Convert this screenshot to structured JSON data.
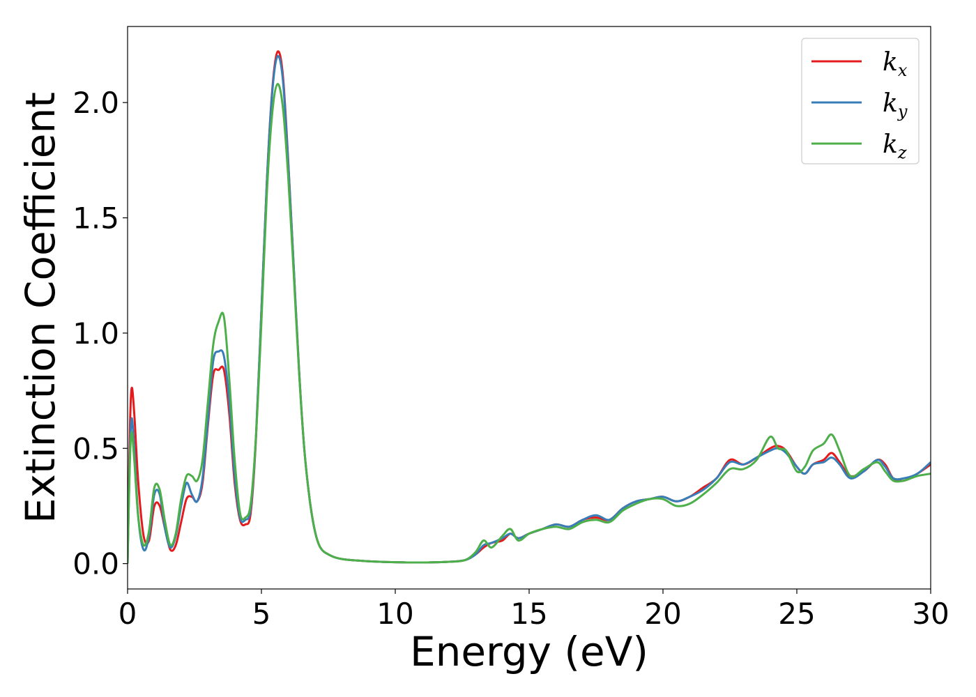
{
  "chart_data": {
    "type": "line",
    "title": "",
    "xlabel": "Energy (eV)",
    "ylabel": "Extinction Coefficient",
    "xlim": [
      0,
      30
    ],
    "ylim": [
      -0.11,
      2.33
    ],
    "xticks": [
      0,
      5,
      10,
      15,
      20,
      25,
      30
    ],
    "xtick_labels": [
      "0",
      "5",
      "10",
      "15",
      "20",
      "25",
      "30"
    ],
    "yticks": [
      0.0,
      0.5,
      1.0,
      1.5,
      2.0
    ],
    "ytick_labels": [
      "0.0",
      "0.5",
      "1.0",
      "1.5",
      "2.0"
    ],
    "grid": false,
    "legend_position": "top-right",
    "series": [
      {
        "name": "k_x",
        "label_base": "k",
        "label_sub": "x",
        "color": "#e41a1c",
        "x": [
          0,
          0.08,
          0.15,
          0.25,
          0.4,
          0.6,
          0.8,
          1.0,
          1.2,
          1.4,
          1.6,
          1.8,
          2.0,
          2.2,
          2.4,
          2.6,
          2.8,
          3.0,
          3.2,
          3.4,
          3.6,
          3.8,
          4.0,
          4.2,
          4.4,
          4.6,
          4.8,
          5.0,
          5.2,
          5.4,
          5.6,
          5.8,
          6.0,
          6.2,
          6.4,
          6.6,
          6.8,
          7.0,
          7.2,
          7.5,
          8.0,
          9.0,
          10.0,
          11.0,
          12.0,
          12.6,
          13.0,
          13.3,
          13.6,
          14.0,
          14.3,
          14.6,
          15.0,
          15.5,
          16.0,
          16.5,
          17.0,
          17.5,
          18.0,
          18.5,
          19.0,
          19.5,
          20.0,
          20.5,
          21.0,
          21.5,
          22.0,
          22.5,
          23.0,
          23.5,
          24.0,
          24.3,
          24.6,
          25.0,
          25.3,
          25.6,
          26.0,
          26.3,
          26.6,
          27.0,
          27.5,
          28.0,
          28.3,
          28.6,
          29.0,
          29.5,
          30.0
        ],
        "values": [
          0.0,
          0.55,
          0.76,
          0.65,
          0.35,
          0.12,
          0.1,
          0.25,
          0.25,
          0.15,
          0.06,
          0.08,
          0.18,
          0.28,
          0.29,
          0.27,
          0.35,
          0.6,
          0.82,
          0.84,
          0.84,
          0.65,
          0.35,
          0.19,
          0.17,
          0.22,
          0.55,
          1.1,
          1.65,
          2.05,
          2.22,
          2.12,
          1.75,
          1.3,
          0.85,
          0.5,
          0.28,
          0.14,
          0.07,
          0.04,
          0.02,
          0.01,
          0.006,
          0.005,
          0.008,
          0.015,
          0.04,
          0.07,
          0.09,
          0.1,
          0.13,
          0.11,
          0.13,
          0.15,
          0.17,
          0.16,
          0.19,
          0.2,
          0.19,
          0.24,
          0.27,
          0.28,
          0.29,
          0.27,
          0.29,
          0.33,
          0.37,
          0.45,
          0.43,
          0.46,
          0.5,
          0.51,
          0.49,
          0.42,
          0.39,
          0.43,
          0.45,
          0.48,
          0.44,
          0.38,
          0.4,
          0.45,
          0.43,
          0.37,
          0.36,
          0.39,
          0.43
        ]
      },
      {
        "name": "k_y",
        "label_base": "k",
        "label_sub": "y",
        "color": "#377eb8",
        "x": [
          0,
          0.08,
          0.15,
          0.25,
          0.4,
          0.6,
          0.8,
          1.0,
          1.2,
          1.4,
          1.6,
          1.8,
          2.0,
          2.2,
          2.4,
          2.6,
          2.8,
          3.0,
          3.2,
          3.4,
          3.6,
          3.8,
          4.0,
          4.2,
          4.4,
          4.6,
          4.8,
          5.0,
          5.2,
          5.4,
          5.6,
          5.8,
          6.0,
          6.2,
          6.4,
          6.6,
          6.8,
          7.0,
          7.2,
          7.5,
          8.0,
          9.0,
          10.0,
          11.0,
          12.0,
          12.6,
          13.0,
          13.3,
          13.6,
          14.0,
          14.3,
          14.6,
          15.0,
          15.5,
          16.0,
          16.5,
          17.0,
          17.5,
          18.0,
          18.5,
          19.0,
          19.5,
          20.0,
          20.5,
          21.0,
          21.5,
          22.0,
          22.5,
          23.0,
          23.5,
          24.0,
          24.3,
          24.6,
          25.0,
          25.3,
          25.6,
          26.0,
          26.3,
          26.6,
          27.0,
          27.5,
          28.0,
          28.3,
          28.6,
          29.0,
          29.5,
          30.0
        ],
        "values": [
          0.0,
          0.45,
          0.63,
          0.5,
          0.2,
          0.06,
          0.12,
          0.3,
          0.3,
          0.15,
          0.07,
          0.12,
          0.25,
          0.35,
          0.3,
          0.27,
          0.37,
          0.62,
          0.88,
          0.92,
          0.9,
          0.7,
          0.38,
          0.2,
          0.19,
          0.24,
          0.56,
          1.1,
          1.65,
          2.04,
          2.2,
          2.1,
          1.74,
          1.3,
          0.85,
          0.5,
          0.28,
          0.14,
          0.07,
          0.04,
          0.02,
          0.01,
          0.006,
          0.005,
          0.008,
          0.015,
          0.04,
          0.08,
          0.09,
          0.11,
          0.13,
          0.11,
          0.13,
          0.15,
          0.17,
          0.16,
          0.19,
          0.21,
          0.19,
          0.24,
          0.27,
          0.28,
          0.29,
          0.27,
          0.29,
          0.32,
          0.37,
          0.44,
          0.43,
          0.46,
          0.49,
          0.5,
          0.48,
          0.42,
          0.39,
          0.43,
          0.44,
          0.46,
          0.43,
          0.37,
          0.4,
          0.45,
          0.42,
          0.37,
          0.37,
          0.39,
          0.44
        ]
      },
      {
        "name": "k_z",
        "label_base": "k",
        "label_sub": "z",
        "color": "#4daf4a",
        "x": [
          0,
          0.08,
          0.15,
          0.25,
          0.4,
          0.6,
          0.8,
          1.0,
          1.2,
          1.4,
          1.6,
          1.8,
          2.0,
          2.2,
          2.4,
          2.6,
          2.8,
          3.0,
          3.2,
          3.4,
          3.6,
          3.8,
          4.0,
          4.2,
          4.4,
          4.6,
          4.8,
          5.0,
          5.2,
          5.4,
          5.6,
          5.8,
          6.0,
          6.2,
          6.4,
          6.6,
          6.8,
          7.0,
          7.2,
          7.5,
          8.0,
          9.0,
          10.0,
          11.0,
          12.0,
          12.6,
          13.0,
          13.3,
          13.6,
          14.0,
          14.3,
          14.6,
          15.0,
          15.5,
          16.0,
          16.5,
          17.0,
          17.5,
          18.0,
          18.5,
          19.0,
          19.5,
          20.0,
          20.5,
          21.0,
          21.5,
          22.0,
          22.5,
          23.0,
          23.5,
          24.0,
          24.3,
          24.6,
          25.0,
          25.3,
          25.6,
          26.0,
          26.3,
          26.6,
          27.0,
          27.5,
          28.0,
          28.3,
          28.6,
          29.0,
          29.5,
          30.0
        ],
        "values": [
          0.0,
          0.42,
          0.57,
          0.45,
          0.2,
          0.08,
          0.14,
          0.33,
          0.32,
          0.18,
          0.08,
          0.13,
          0.28,
          0.38,
          0.38,
          0.36,
          0.45,
          0.7,
          0.95,
          1.05,
          1.07,
          0.8,
          0.45,
          0.22,
          0.2,
          0.26,
          0.56,
          1.05,
          1.6,
          1.95,
          2.08,
          1.98,
          1.68,
          1.27,
          0.84,
          0.5,
          0.28,
          0.14,
          0.07,
          0.04,
          0.02,
          0.01,
          0.006,
          0.005,
          0.008,
          0.015,
          0.05,
          0.1,
          0.07,
          0.12,
          0.15,
          0.1,
          0.13,
          0.15,
          0.16,
          0.15,
          0.18,
          0.19,
          0.18,
          0.23,
          0.26,
          0.28,
          0.28,
          0.25,
          0.26,
          0.3,
          0.35,
          0.41,
          0.41,
          0.45,
          0.55,
          0.5,
          0.49,
          0.4,
          0.42,
          0.49,
          0.52,
          0.56,
          0.49,
          0.38,
          0.41,
          0.44,
          0.4,
          0.36,
          0.36,
          0.38,
          0.39
        ]
      }
    ]
  }
}
